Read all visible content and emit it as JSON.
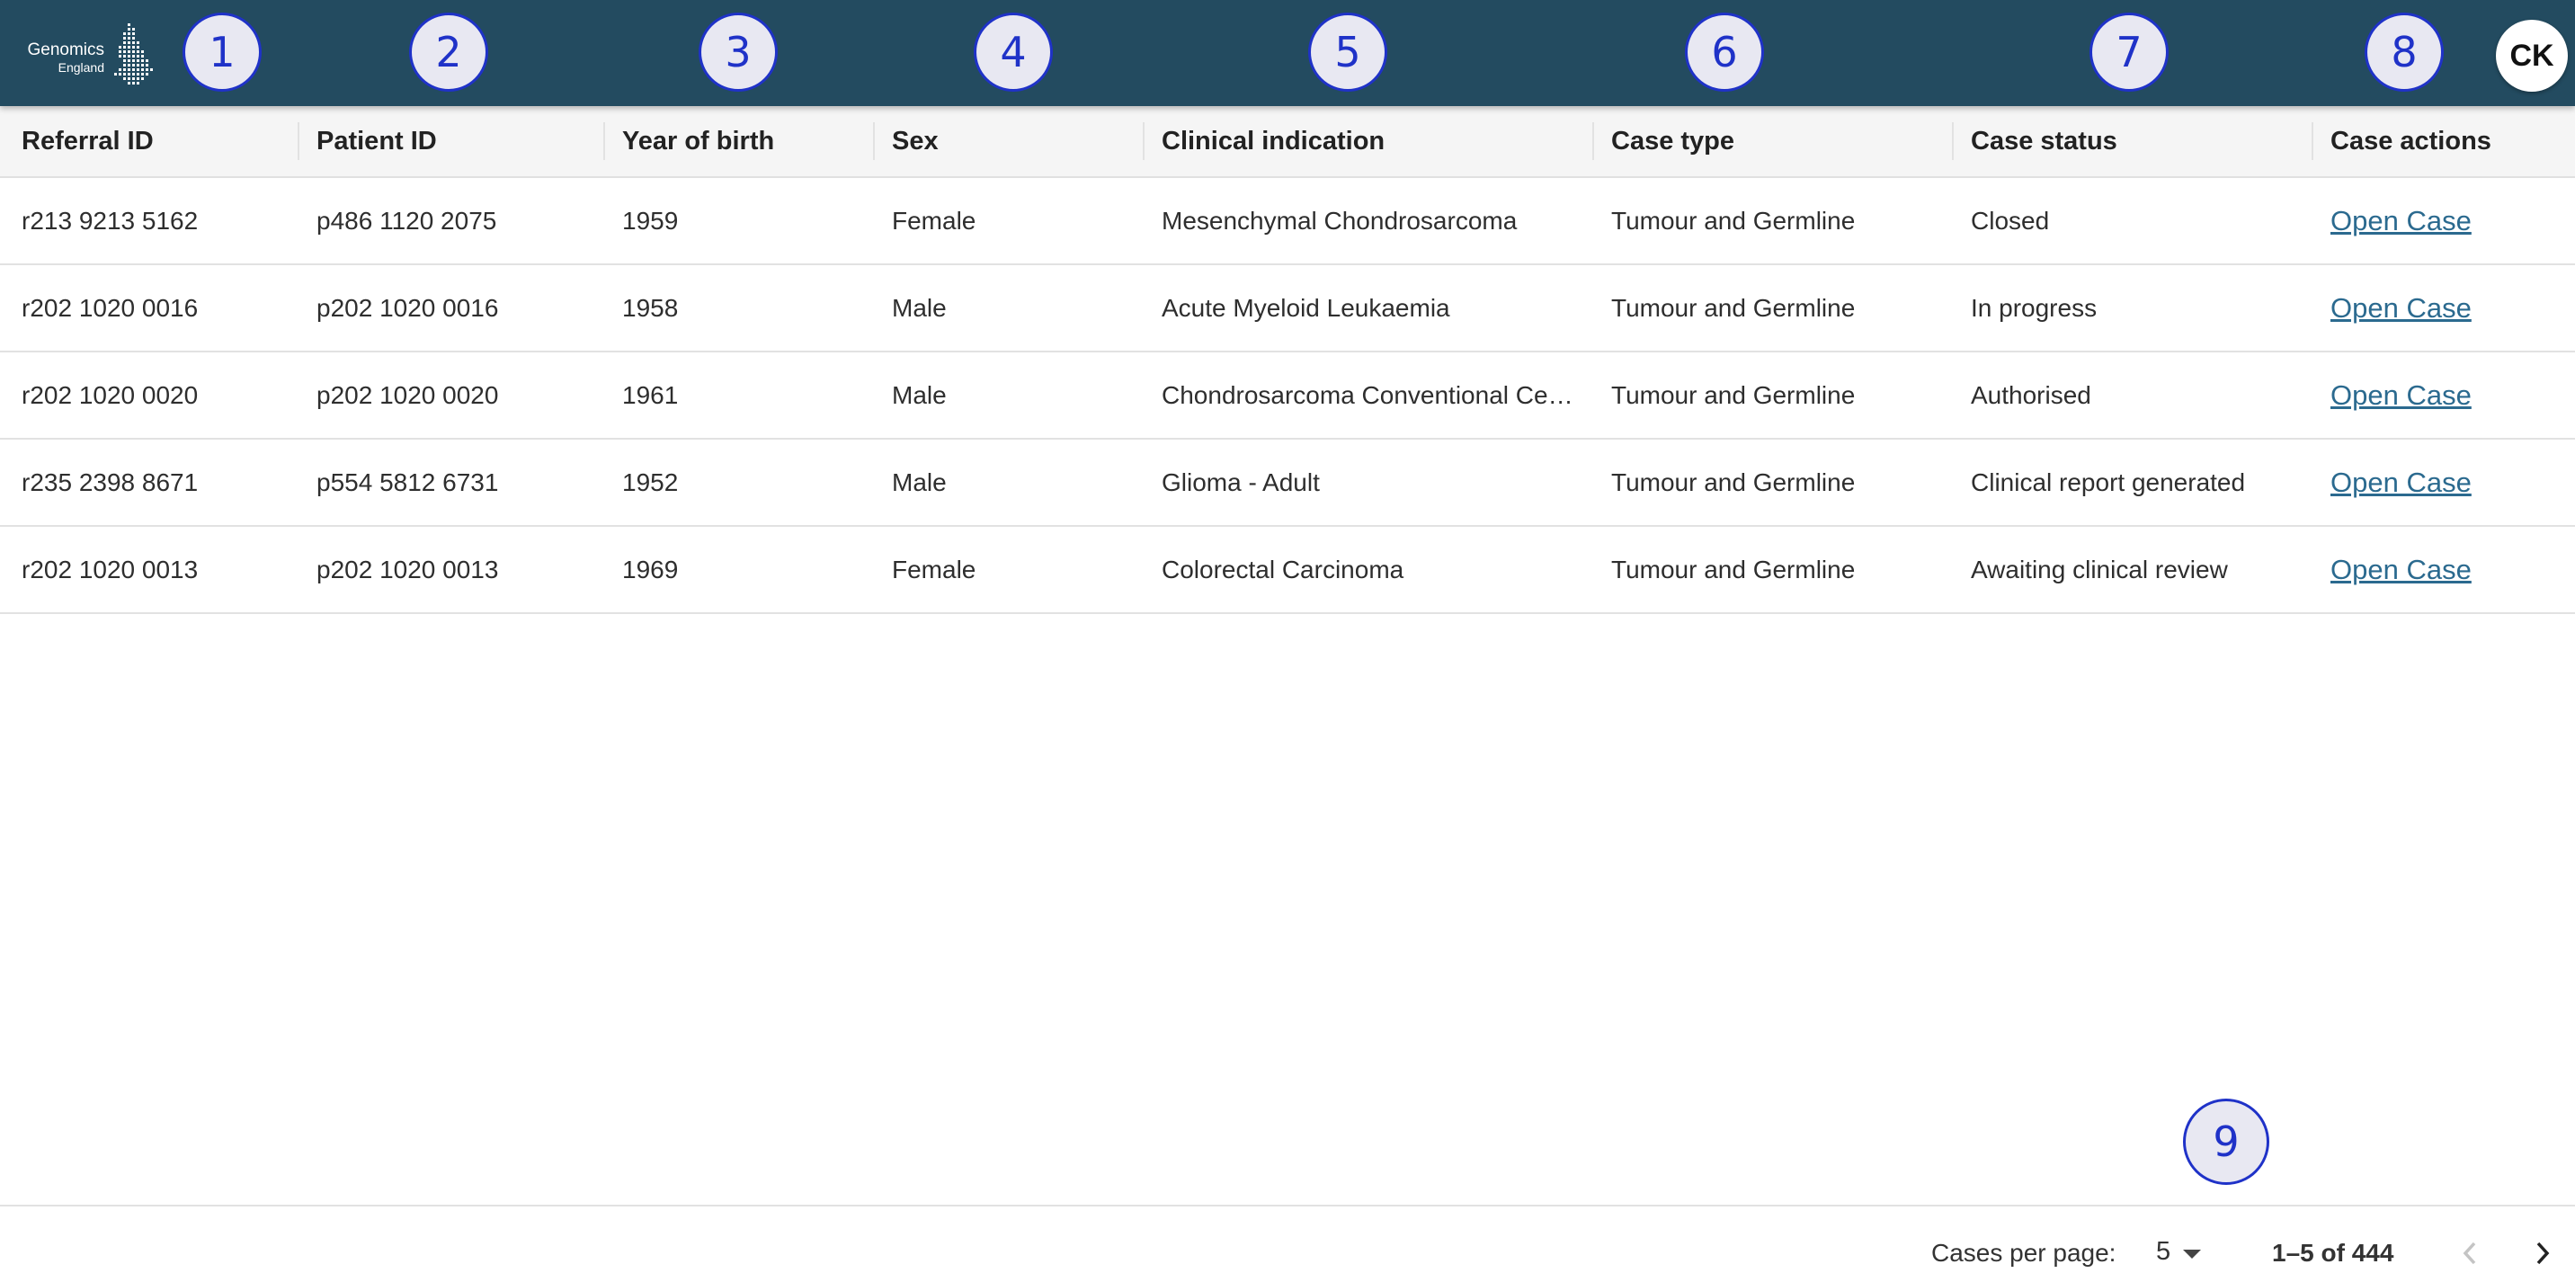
{
  "header": {
    "logo_line1": "Genomics",
    "logo_line2": "England",
    "avatar_initials": "CK",
    "background_color": "#234b60"
  },
  "markers": [
    "1",
    "2",
    "3",
    "4",
    "5",
    "6",
    "7",
    "8",
    "9"
  ],
  "table": {
    "columns": [
      "Referral ID",
      "Patient ID",
      "Year of birth",
      "Sex",
      "Clinical indication",
      "Case type",
      "Case status",
      "Case actions"
    ],
    "rows": [
      {
        "referral_id": "r213 9213 5162",
        "patient_id": "p486 1120 2075",
        "year_of_birth": "1959",
        "sex": "Female",
        "clinical_indication": "Mesenchymal Chondrosarcoma",
        "case_type": "Tumour and Germline",
        "case_status": "Closed",
        "action": "Open Case"
      },
      {
        "referral_id": "r202 1020 0016",
        "patient_id": "p202 1020 0016",
        "year_of_birth": "1958",
        "sex": "Male",
        "clinical_indication": "Acute Myeloid Leukaemia",
        "case_type": "Tumour and Germline",
        "case_status": "In progress",
        "action": "Open Case"
      },
      {
        "referral_id": "r202 1020 0020",
        "patient_id": "p202 1020 0020",
        "year_of_birth": "1961",
        "sex": "Male",
        "clinical_indication": "Chondrosarcoma Conventional Ce…",
        "case_type": "Tumour and Germline",
        "case_status": "Authorised",
        "action": "Open Case"
      },
      {
        "referral_id": "r235 2398 8671",
        "patient_id": "p554 5812 6731",
        "year_of_birth": "1952",
        "sex": "Male",
        "clinical_indication": "Glioma - Adult",
        "case_type": "Tumour and Germline",
        "case_status": "Clinical report generated",
        "action": "Open Case"
      },
      {
        "referral_id": "r202 1020 0013",
        "patient_id": "p202 1020 0013",
        "year_of_birth": "1969",
        "sex": "Female",
        "clinical_indication": "Colorectal Carcinoma",
        "case_type": "Tumour and Germline",
        "case_status": "Awaiting clinical review",
        "action": "Open Case"
      }
    ]
  },
  "pagination": {
    "per_page_label": "Cases per page:",
    "per_page_value": "5",
    "range": "1–5 of 444",
    "prev_icon": "chevron-left-icon",
    "next_icon": "chevron-right-icon"
  },
  "colors": {
    "link": "#2b6a8f",
    "marker": "#1f32c8"
  }
}
